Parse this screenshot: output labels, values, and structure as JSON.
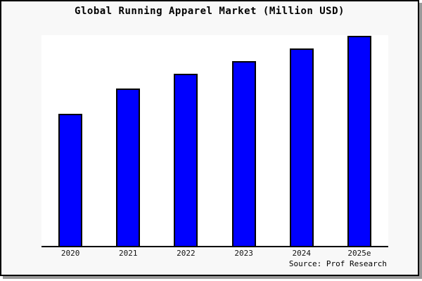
{
  "title": "Global Running Apparel Market (Million USD)",
  "source_label": "Source: Prof Research",
  "colors": {
    "bar_fill": "#0000ff",
    "bar_border": "#000000",
    "panel_background": "#f8f8f8",
    "plot_background": "#ffffff",
    "axis": "#000000",
    "panel_border": "#000000",
    "shadow": "#999999"
  },
  "chart_data": {
    "type": "bar",
    "title": "Global Running Apparel Market (Million USD)",
    "categories": [
      "2020",
      "2021",
      "2022",
      "2023",
      "2024",
      "2025e"
    ],
    "values": [
      63,
      75,
      82,
      88,
      94,
      100
    ],
    "xlabel": "",
    "ylabel": "",
    "ylim": [
      0,
      100
    ],
    "grid": false,
    "legend": false,
    "yaxis_shown": false,
    "note": "No y-axis scale or data labels are rendered in the image; values are relative bar heights normalized to tallest bar (2025e) = 100."
  }
}
